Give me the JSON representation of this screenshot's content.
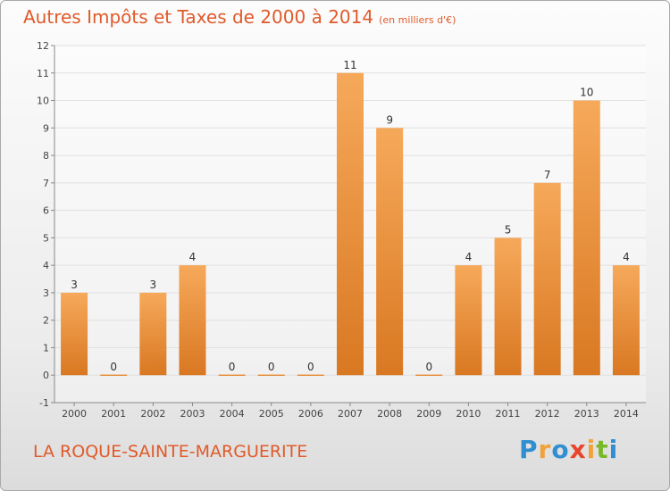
{
  "title": "Autres Impôts et Taxes de 2000 à 2014",
  "unit": "(en milliers d'€)",
  "place": "LA ROQUE-SAINTE-MARGUERITE",
  "logo": {
    "text": "Proxiti",
    "colors": [
      "#2f8fd0",
      "#f2a23a",
      "#2f8fd0",
      "#e8462c",
      "#f2a23a",
      "#79b928",
      "#2f8fd0"
    ]
  },
  "colors": {
    "title": "#e05a2a",
    "bar_light": "#f6a95a",
    "bar_dark": "#d97822",
    "grid": "#e0e0e0",
    "axis": "#888888"
  },
  "chart_data": {
    "type": "bar",
    "categories": [
      "2000",
      "2001",
      "2002",
      "2003",
      "2004",
      "2005",
      "2006",
      "2007",
      "2008",
      "2009",
      "2010",
      "2011",
      "2012",
      "2013",
      "2014"
    ],
    "values": [
      3,
      0,
      3,
      4,
      0,
      0,
      0,
      11,
      9,
      0,
      4,
      5,
      7,
      10,
      4
    ],
    "ylim": [
      -1,
      12
    ],
    "yticks": [
      -1,
      0,
      1,
      2,
      3,
      4,
      5,
      6,
      7,
      8,
      9,
      10,
      11,
      12
    ],
    "grid": true,
    "data_labels": true
  }
}
